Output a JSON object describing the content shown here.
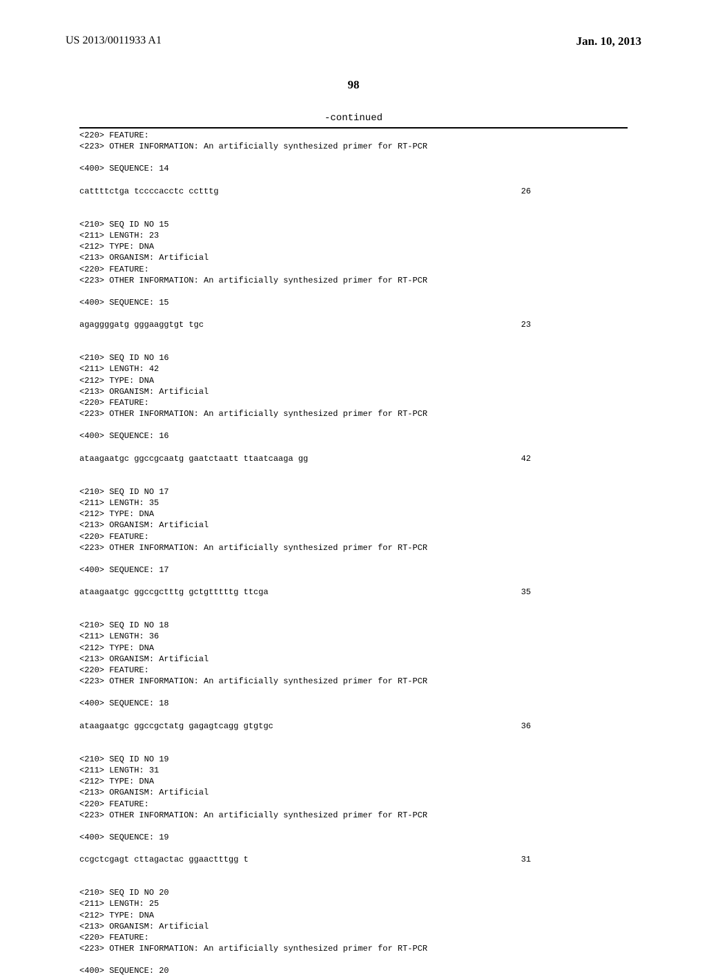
{
  "header": {
    "pub_number": "US 2013/0011933 A1",
    "pub_date": "Jan. 10, 2013"
  },
  "page_number": "98",
  "continued_label": "-continued",
  "sequences": [
    {
      "header_lines": [
        "<220> FEATURE:",
        "<223> OTHER INFORMATION: An artificially synthesized primer for RT-PCR"
      ],
      "seq_label": "<400> SEQUENCE: 14",
      "seq_data": "cattttctga tccccacctc cctttg",
      "seq_length": "26"
    },
    {
      "header_lines": [
        "<210> SEQ ID NO 15",
        "<211> LENGTH: 23",
        "<212> TYPE: DNA",
        "<213> ORGANISM: Artificial",
        "<220> FEATURE:",
        "<223> OTHER INFORMATION: An artificially synthesized primer for RT-PCR"
      ],
      "seq_label": "<400> SEQUENCE: 15",
      "seq_data": "agaggggatg gggaaggtgt tgc",
      "seq_length": "23"
    },
    {
      "header_lines": [
        "<210> SEQ ID NO 16",
        "<211> LENGTH: 42",
        "<212> TYPE: DNA",
        "<213> ORGANISM: Artificial",
        "<220> FEATURE:",
        "<223> OTHER INFORMATION: An artificially synthesized primer for RT-PCR"
      ],
      "seq_label": "<400> SEQUENCE: 16",
      "seq_data": "ataagaatgc ggccgcaatg gaatctaatt ttaatcaaga gg",
      "seq_length": "42"
    },
    {
      "header_lines": [
        "<210> SEQ ID NO 17",
        "<211> LENGTH: 35",
        "<212> TYPE: DNA",
        "<213> ORGANISM: Artificial",
        "<220> FEATURE:",
        "<223> OTHER INFORMATION: An artificially synthesized primer for RT-PCR"
      ],
      "seq_label": "<400> SEQUENCE: 17",
      "seq_data": "ataagaatgc ggccgctttg gctgtttttg ttcga",
      "seq_length": "35"
    },
    {
      "header_lines": [
        "<210> SEQ ID NO 18",
        "<211> LENGTH: 36",
        "<212> TYPE: DNA",
        "<213> ORGANISM: Artificial",
        "<220> FEATURE:",
        "<223> OTHER INFORMATION: An artificially synthesized primer for RT-PCR"
      ],
      "seq_label": "<400> SEQUENCE: 18",
      "seq_data": "ataagaatgc ggccgctatg gagagtcagg gtgtgc",
      "seq_length": "36"
    },
    {
      "header_lines": [
        "<210> SEQ ID NO 19",
        "<211> LENGTH: 31",
        "<212> TYPE: DNA",
        "<213> ORGANISM: Artificial",
        "<220> FEATURE:",
        "<223> OTHER INFORMATION: An artificially synthesized primer for RT-PCR"
      ],
      "seq_label": "<400> SEQUENCE: 19",
      "seq_data": "ccgctcgagt cttagactac ggaactttgg t",
      "seq_length": "31"
    },
    {
      "header_lines": [
        "<210> SEQ ID NO 20",
        "<211> LENGTH: 25",
        "<212> TYPE: DNA",
        "<213> ORGANISM: Artificial",
        "<220> FEATURE:",
        "<223> OTHER INFORMATION: An artificially synthesized primer for RT-PCR"
      ],
      "seq_label": "<400> SEQUENCE: 20",
      "seq_data": "",
      "seq_length": ""
    }
  ]
}
